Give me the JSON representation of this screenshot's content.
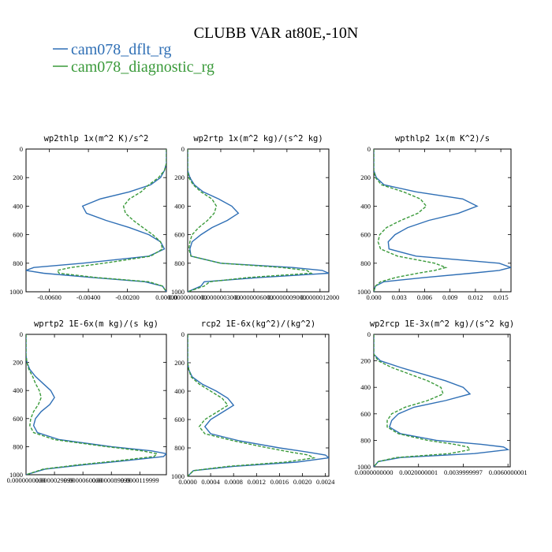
{
  "title": "CLUBB VAR at80E,-10N",
  "colors": {
    "dflt": "#2f6fb5",
    "diag": "#3a9a3a"
  },
  "legend": [
    {
      "label": "cam078_dflt_rg",
      "color": "#2f6fb5",
      "dash": "solid"
    },
    {
      "label": "cam078_diagnostic_rg",
      "color": "#3a9a3a",
      "dash": "dashed"
    }
  ],
  "chart_data": [
    {
      "type": "line",
      "title": "wp2thlp   1x(m^2 K)/s^2",
      "xlim": [
        -0.0072,
        0.0
      ],
      "ylim": [
        1000,
        0
      ],
      "xticks": [
        -0.006,
        -0.004,
        -0.002,
        0.0
      ],
      "xtick_labels": [
        "-0.00600",
        "-0.00400",
        "-0.00200",
        "0.00000"
      ],
      "yticks": [
        0,
        200,
        400,
        600,
        800,
        1000
      ],
      "ytick_labels": [
        "0",
        "200",
        "400",
        "600",
        "800",
        "1000"
      ],
      "levels": [
        0,
        100,
        150,
        200,
        250,
        300,
        350,
        400,
        450,
        500,
        550,
        600,
        650,
        700,
        750,
        800,
        830,
        850,
        870,
        900,
        930,
        960,
        1000
      ],
      "series": [
        {
          "name": "cam078_dflt_rg",
          "values": [
            0,
            0,
            -0.0001,
            -0.0003,
            -0.0008,
            -0.0019,
            -0.0034,
            -0.0043,
            -0.0041,
            -0.0031,
            -0.0019,
            -0.0009,
            -0.0003,
            -0.0001,
            -0.0009,
            -0.0043,
            -0.0068,
            -0.0072,
            -0.0063,
            -0.0038,
            -0.0011,
            -0.0002,
            0
          ]
        },
        {
          "name": "cam078_diagnostic_rg",
          "values": [
            0,
            0,
            -0.0001,
            -0.0004,
            -0.0009,
            -0.0013,
            -0.0019,
            -0.0022,
            -0.0021,
            -0.0017,
            -0.0012,
            -0.0007,
            -0.0003,
            -0.0002,
            -0.0008,
            -0.0032,
            -0.0049,
            -0.0056,
            -0.0055,
            -0.0036,
            -0.0009,
            -0.0002,
            0
          ]
        }
      ]
    },
    {
      "type": "line",
      "title": "wp2rtp   1x(m^2 kg)/(s^2 kg)",
      "xlim": [
        0.0,
        1.28e-06
      ],
      "ylim": [
        1000,
        0
      ],
      "xticks": [
        0.0,
        3e-07,
        6e-07,
        9e-07,
        1.2e-06
      ],
      "xtick_labels": [
        "0.0000000000",
        "0.0000003000",
        "0.0000006000",
        "0.0000009000",
        "0.0000012000"
      ],
      "yticks": [
        0,
        200,
        400,
        600,
        800,
        1000
      ],
      "ytick_labels": [
        "0",
        "200",
        "400",
        "600",
        "800",
        "1000"
      ],
      "levels": [
        0,
        150,
        200,
        250,
        300,
        350,
        400,
        450,
        500,
        550,
        600,
        650,
        700,
        750,
        800,
        830,
        850,
        870,
        900,
        930,
        960,
        1000
      ],
      "series": [
        {
          "name": "cam078_dflt_rg",
          "values": [
            0,
            0,
            2e-08,
            6e-08,
            1.4e-07,
            2.8e-07,
            4e-07,
            4.6e-07,
            3.6e-07,
            2.2e-07,
            1.2e-07,
            4e-08,
            2e-08,
            3e-08,
            3e-07,
            9.5e-07,
            1.22e-06,
            1.28e-06,
            6.5e-07,
            1.5e-07,
            1.2e-07,
            0
          ]
        },
        {
          "name": "cam078_diagnostic_rg",
          "values": [
            0,
            0,
            1e-08,
            5e-08,
            1.2e-07,
            2.2e-07,
            2.6e-07,
            2.4e-07,
            1.8e-07,
            1e-07,
            4e-08,
            2e-08,
            1e-08,
            3e-08,
            3e-07,
            8.5e-07,
            1.08e-06,
            1.12e-06,
            5.5e-07,
            2e-07,
            1.5e-07,
            0
          ]
        }
      ]
    },
    {
      "type": "line",
      "title": "wpthlp2   1x(m K^2)/s",
      "xlim": [
        0.0,
        0.0162
      ],
      "ylim": [
        1000,
        0
      ],
      "xticks": [
        0.0,
        0.003,
        0.006,
        0.009,
        0.012,
        0.015
      ],
      "xtick_labels": [
        "0.000",
        "0.003",
        "0.006",
        "0.009",
        "0.012",
        "0.015"
      ],
      "yticks": [
        0,
        200,
        400,
        600,
        800,
        1000
      ],
      "ytick_labels": [
        "0",
        "200",
        "400",
        "600",
        "800",
        "1000"
      ],
      "levels": [
        0,
        150,
        200,
        250,
        300,
        350,
        400,
        450,
        500,
        550,
        600,
        650,
        700,
        750,
        800,
        830,
        850,
        870,
        900,
        930,
        960,
        1000
      ],
      "series": [
        {
          "name": "cam078_dflt_rg",
          "values": [
            0,
            0,
            0.0003,
            0.0012,
            0.005,
            0.0105,
            0.0122,
            0.01,
            0.0065,
            0.004,
            0.0025,
            0.0017,
            0.0018,
            0.005,
            0.0148,
            0.0162,
            0.0148,
            0.0115,
            0.006,
            0.0012,
            0.0002,
            0
          ]
        },
        {
          "name": "cam078_diagnostic_rg",
          "values": [
            0,
            0,
            0.0002,
            0.0009,
            0.0035,
            0.0055,
            0.0062,
            0.0052,
            0.0032,
            0.0015,
            0.0007,
            0.0005,
            0.0008,
            0.0028,
            0.0072,
            0.0085,
            0.0072,
            0.0052,
            0.0026,
            0.0008,
            0.0002,
            0
          ]
        }
      ]
    },
    {
      "type": "line",
      "title": "wprtp2   1E-6x(m kg)/(s kg)",
      "xlim": [
        0.0,
        1.48e-05
      ],
      "ylim": [
        1000,
        0
      ],
      "xticks": [
        0.0,
        3e-06,
        6e-06,
        9e-06,
        1.2e-05
      ],
      "xtick_labels": [
        "0.0000000000",
        "0.0000029999",
        "0.0000060000",
        "0.0000089999",
        "0.0000119999"
      ],
      "yticks": [
        0,
        200,
        400,
        600,
        800,
        1000
      ],
      "ytick_labels": [
        "0",
        "200",
        "400",
        "600",
        "800",
        "1000"
      ],
      "levels": [
        0,
        150,
        200,
        250,
        300,
        350,
        400,
        450,
        500,
        550,
        600,
        650,
        700,
        750,
        800,
        830,
        850,
        870,
        900,
        930,
        960,
        1000
      ],
      "series": [
        {
          "name": "cam078_dflt_rg",
          "values": [
            0,
            0,
            1e-07,
            4e-07,
            1e-06,
            1.8e-06,
            2.6e-06,
            3e-06,
            2.5e-06,
            1.6e-06,
            1e-06,
            8e-07,
            1.2e-06,
            3.5e-06,
            9e-06,
            1.32e-05,
            1.48e-05,
            1.45e-05,
            1.05e-05,
            6e-06,
            2e-06,
            0
          ]
        },
        {
          "name": "cam078_diagnostic_rg",
          "values": [
            0,
            0,
            1e-07,
            3e-07,
            7e-07,
            1e-06,
            1.4e-06,
            1.6e-06,
            1.3e-06,
            8e-07,
            5e-07,
            4e-07,
            8e-07,
            3e-06,
            8.5e-06,
            1.22e-05,
            1.38e-05,
            1.35e-05,
            9.8e-06,
            5.5e-06,
            1.8e-06,
            0
          ]
        }
      ]
    },
    {
      "type": "line",
      "title": "rcp2   1E-6x(kg^2)/(kg^2)",
      "xlim": [
        0.0,
        0.00246
      ],
      "ylim": [
        1000,
        0
      ],
      "xticks": [
        0.0,
        0.0004,
        0.0008,
        0.0012,
        0.0016,
        0.002,
        0.0024
      ],
      "xtick_labels": [
        "0.0000",
        "0.0004",
        "0.0008",
        "0.0012",
        "0.0016",
        "0.0020",
        "0.0024"
      ],
      "yticks": [
        0,
        200,
        400,
        600,
        800,
        1000
      ],
      "ytick_labels": [
        "0",
        "200",
        "400",
        "600",
        "800",
        "1000"
      ],
      "levels": [
        0,
        150,
        200,
        250,
        300,
        350,
        400,
        450,
        500,
        550,
        600,
        650,
        700,
        750,
        800,
        830,
        850,
        870,
        900,
        930,
        960,
        1000
      ],
      "series": [
        {
          "name": "cam078_dflt_rg",
          "values": [
            0,
            0,
            0,
            2e-05,
            8e-05,
            0.00025,
            0.0005,
            0.0007,
            0.0008,
            0.0006,
            0.0004,
            0.0003,
            0.0004,
            0.0009,
            0.0016,
            0.0021,
            0.0024,
            0.00246,
            0.0019,
            0.0008,
            0.0001,
            0
          ]
        },
        {
          "name": "cam078_diagnostic_rg",
          "values": [
            0,
            0,
            0,
            2e-05,
            6e-05,
            0.0002,
            0.0004,
            0.0006,
            0.0007,
            0.0005,
            0.0003,
            0.0002,
            0.0003,
            0.0008,
            0.0014,
            0.0018,
            0.0021,
            0.0022,
            0.0017,
            0.0007,
            0.0001,
            0
          ]
        }
      ]
    },
    {
      "type": "line",
      "title": "wp2rcp   1E-3x(m^2 kg)/(s^2 kg)",
      "xlim": [
        0.0,
        0.0061
      ],
      "ylim": [
        1000,
        0
      ],
      "xticks": [
        0.0,
        0.002,
        0.004,
        0.006
      ],
      "xtick_labels": [
        "0.0000000000",
        "0.0020000001",
        "0.0039999997",
        "0.0060000001"
      ],
      "yticks": [
        0,
        200,
        400,
        600,
        800,
        1000
      ],
      "ytick_labels": [
        "0",
        "200",
        "400",
        "600",
        "800",
        "1000"
      ],
      "levels": [
        0,
        150,
        200,
        250,
        300,
        350,
        400,
        450,
        500,
        550,
        600,
        650,
        700,
        750,
        800,
        830,
        850,
        870,
        900,
        930,
        960,
        1000
      ],
      "series": [
        {
          "name": "cam078_dflt_rg",
          "values": [
            0,
            0,
            0.0003,
            0.0012,
            0.0022,
            0.0032,
            0.004,
            0.0043,
            0.0032,
            0.0018,
            0.0011,
            0.0008,
            0.0007,
            0.0012,
            0.0028,
            0.0048,
            0.0058,
            0.006,
            0.0045,
            0.0012,
            0.0002,
            0
          ]
        },
        {
          "name": "cam078_diagnostic_rg",
          "values": [
            0,
            0,
            0.0002,
            0.0008,
            0.0016,
            0.0024,
            0.003,
            0.0031,
            0.0024,
            0.0014,
            0.0008,
            0.0006,
            0.0006,
            0.0011,
            0.0024,
            0.0036,
            0.0042,
            0.0043,
            0.0034,
            0.001,
            0.0002,
            0
          ]
        }
      ]
    }
  ]
}
